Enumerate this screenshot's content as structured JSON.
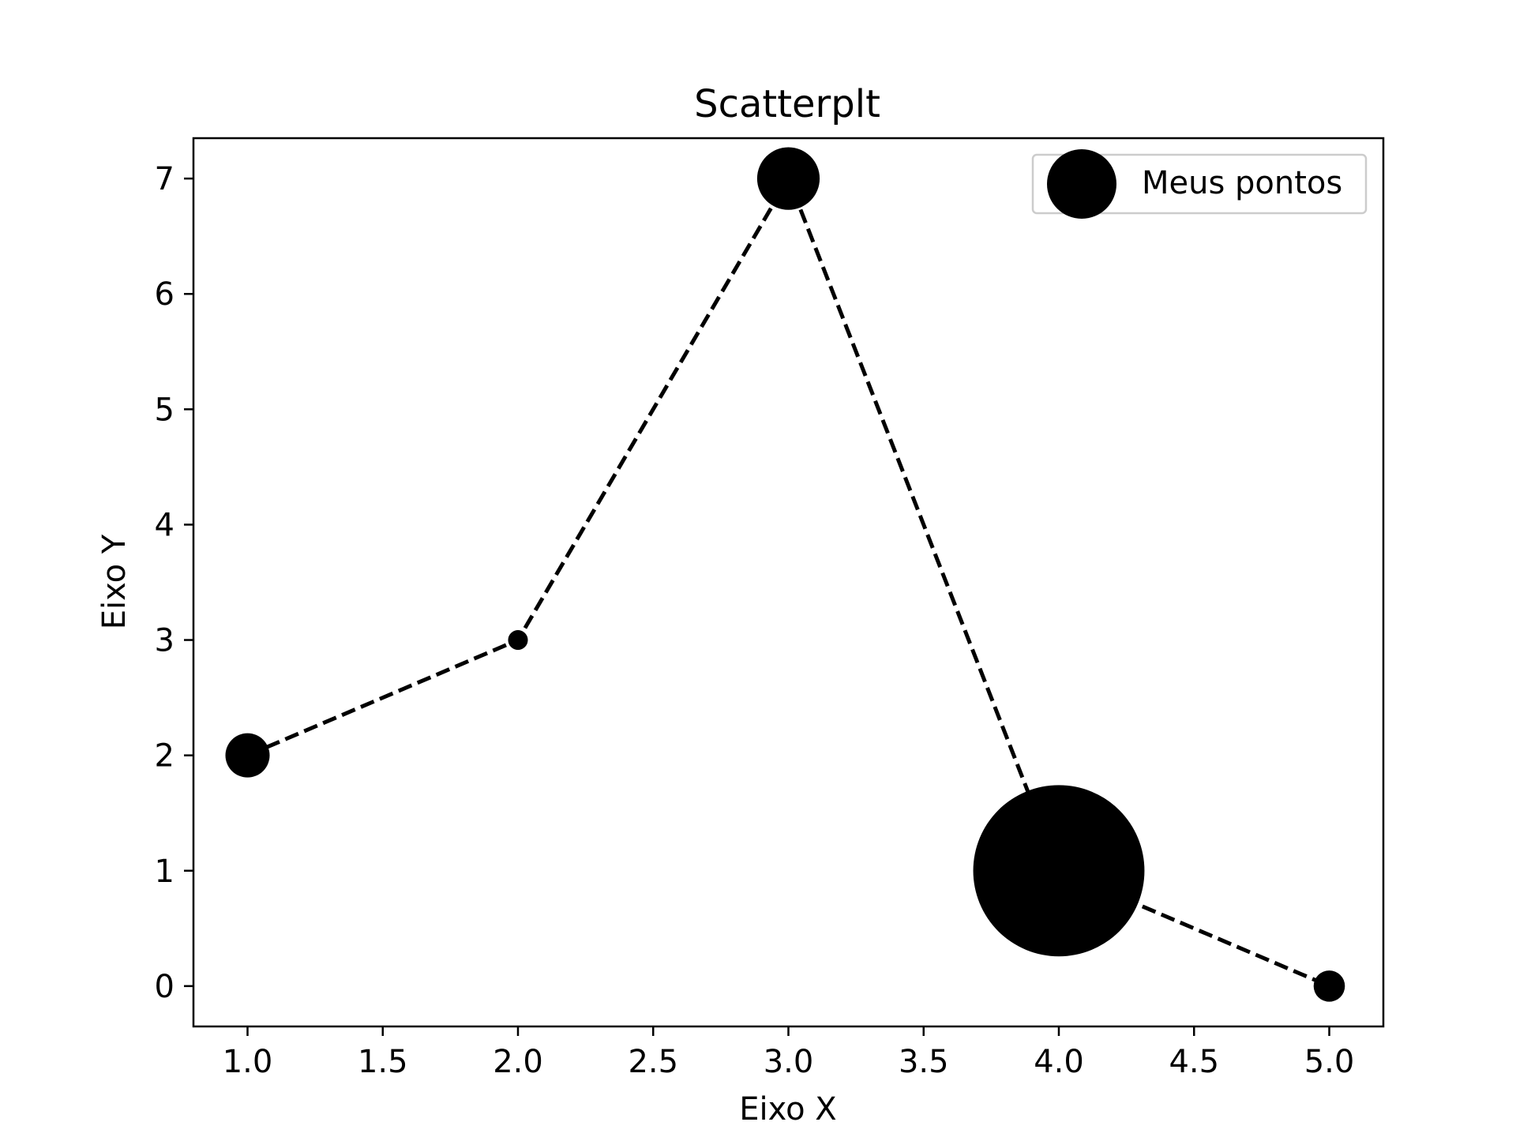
{
  "chart_data": {
    "type": "scatter",
    "title": "Scatterplt",
    "xlabel": "Eixo X",
    "ylabel": "Eixo Y",
    "xlim": [
      0.8,
      5.2
    ],
    "ylim": [
      -0.35,
      7.35
    ],
    "xticks": [
      "1.0",
      "1.5",
      "2.0",
      "2.5",
      "3.0",
      "3.5",
      "4.0",
      "4.5",
      "5.0"
    ],
    "yticks": [
      "0",
      "1",
      "2",
      "3",
      "4",
      "5",
      "6",
      "7"
    ],
    "grid": false,
    "legend_position": "upper right",
    "connector_line": "dashed",
    "series": [
      {
        "name": "Meus pontos",
        "color": "#000000",
        "x": [
          1,
          2,
          3,
          4,
          5
        ],
        "y": [
          2,
          3,
          7,
          1,
          0
        ],
        "sizes": [
          100,
          20,
          200,
          1500,
          50
        ]
      }
    ]
  }
}
